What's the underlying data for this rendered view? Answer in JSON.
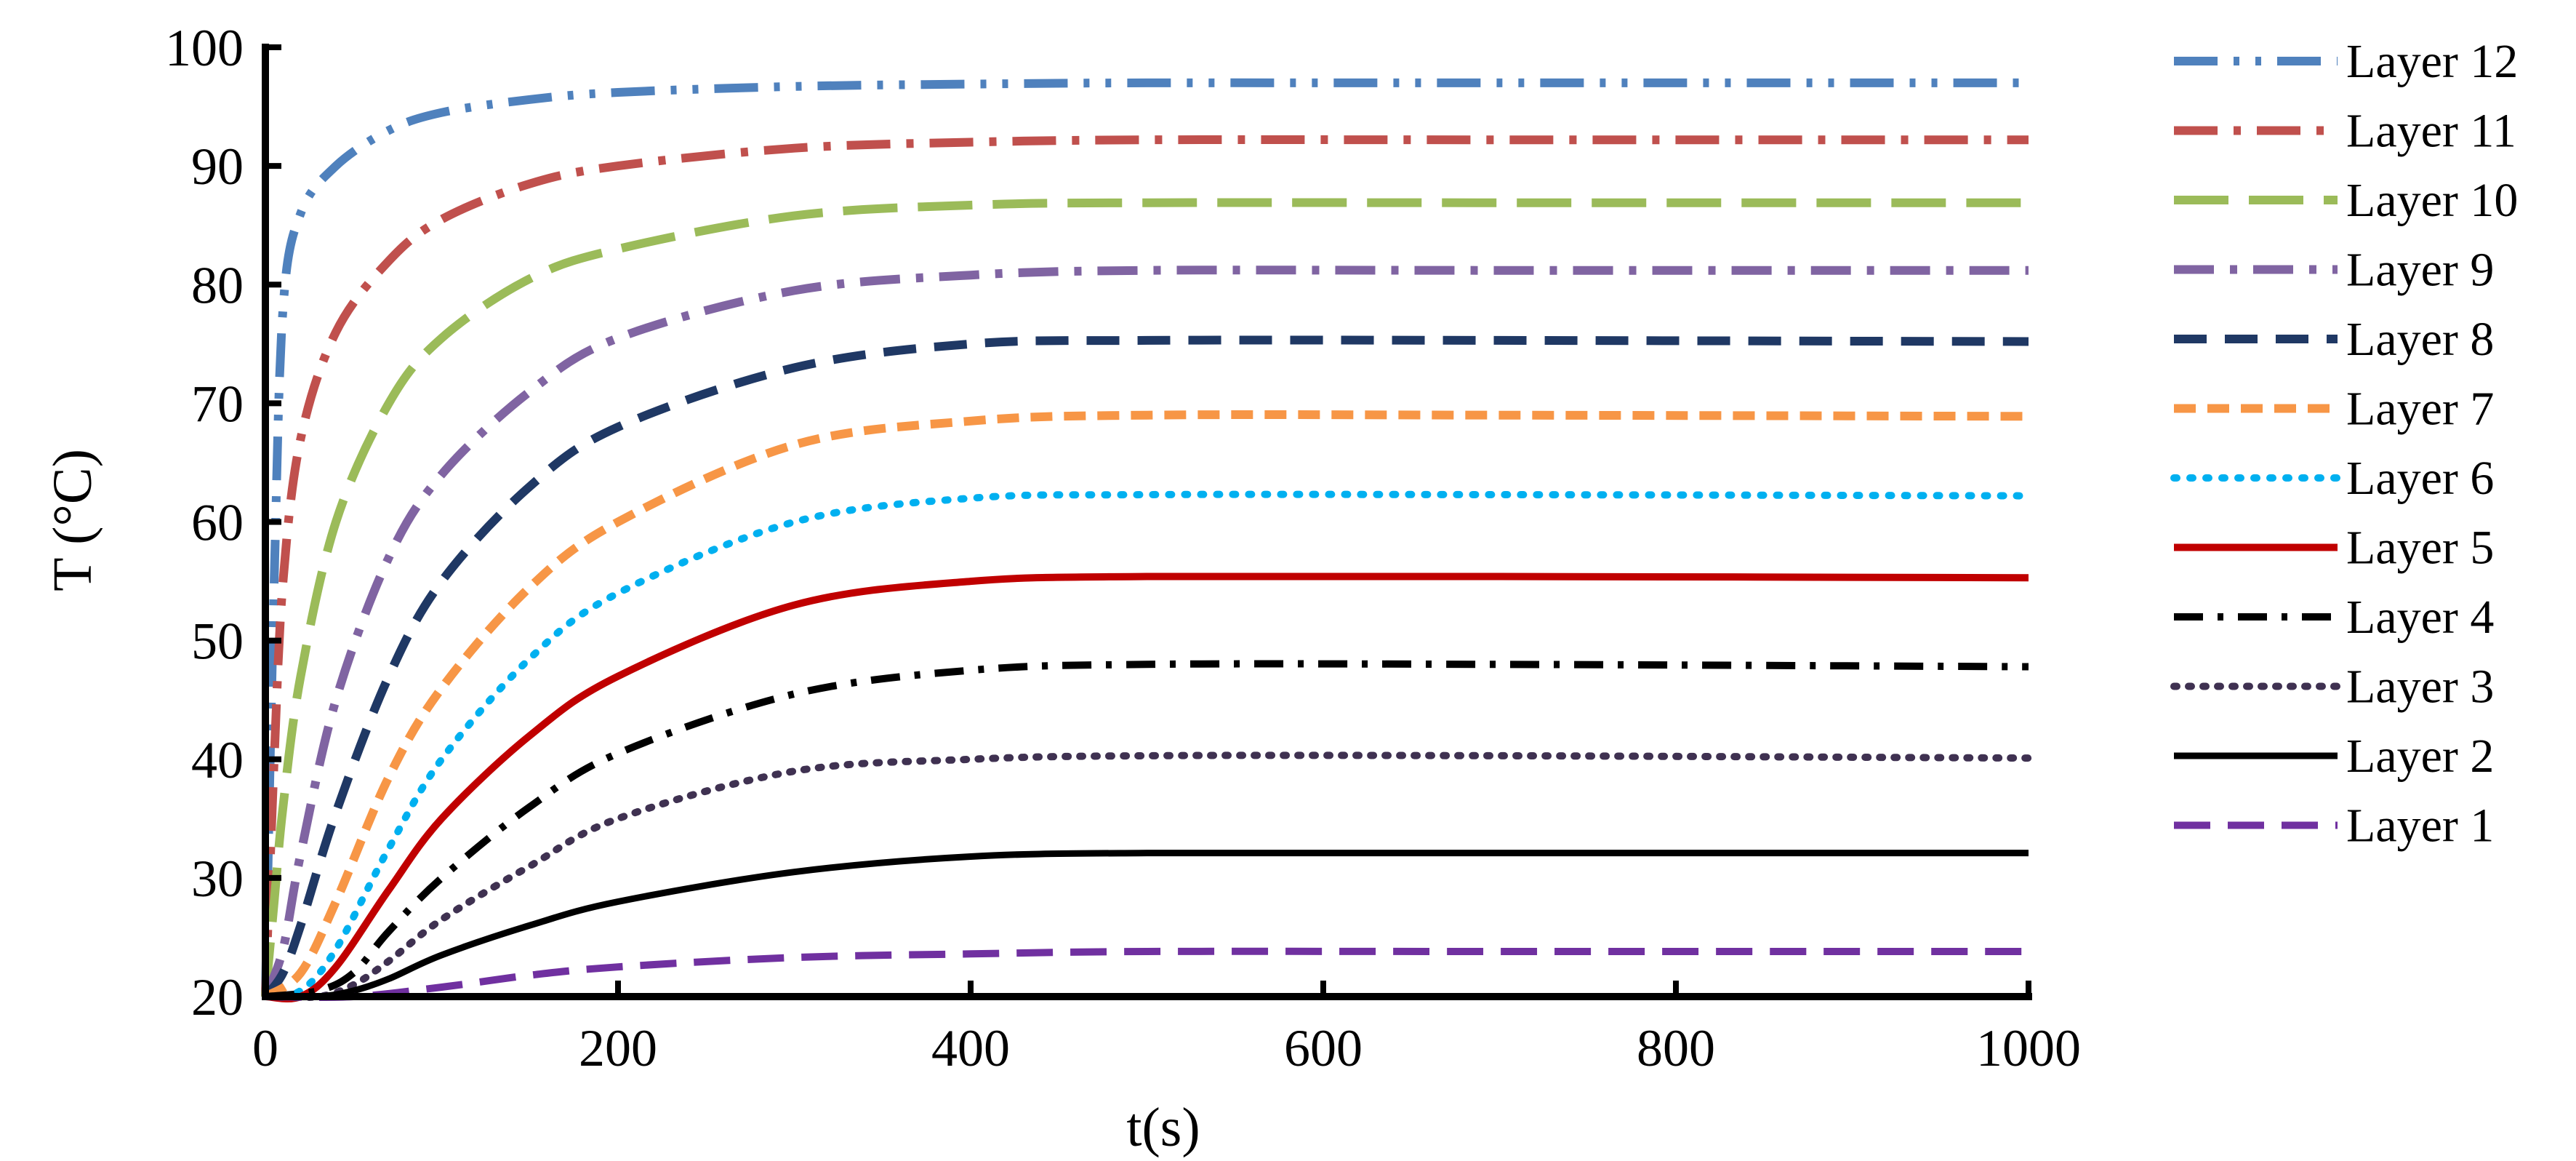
{
  "chart_data": {
    "type": "line",
    "title": "",
    "xlabel": "t(s)",
    "ylabel": "T (°C)",
    "xlim": [
      0,
      1000
    ],
    "ylim": [
      20,
      100
    ],
    "xticks": [
      0,
      200,
      400,
      600,
      800,
      1000
    ],
    "yticks": [
      20,
      30,
      40,
      50,
      60,
      70,
      80,
      90,
      100
    ],
    "grid": false,
    "legend_position": "right",
    "series": [
      {
        "name": "Layer 12",
        "color": "#4F81BD",
        "dash": "60,22,8,22,8,22",
        "width": 12,
        "points": [
          [
            0,
            20
          ],
          [
            5,
            55
          ],
          [
            10,
            78
          ],
          [
            20,
            86
          ],
          [
            40,
            90
          ],
          [
            70,
            93
          ],
          [
            100,
            94.5
          ],
          [
            150,
            95.6
          ],
          [
            200,
            96.2
          ],
          [
            300,
            96.7
          ],
          [
            400,
            96.9
          ],
          [
            500,
            97
          ],
          [
            700,
            97
          ],
          [
            1000,
            97
          ]
        ]
      },
      {
        "name": "Layer 11",
        "color": "#C0504D",
        "dash": "60,22,10,22",
        "width": 12,
        "points": [
          [
            0,
            20
          ],
          [
            5,
            40
          ],
          [
            10,
            55
          ],
          [
            20,
            67
          ],
          [
            40,
            76
          ],
          [
            70,
            82
          ],
          [
            100,
            85.5
          ],
          [
            150,
            88.5
          ],
          [
            200,
            90
          ],
          [
            300,
            91.5
          ],
          [
            400,
            92
          ],
          [
            500,
            92.2
          ],
          [
            700,
            92.2
          ],
          [
            1000,
            92.2
          ]
        ]
      },
      {
        "name": "Layer 10",
        "color": "#9BBB59",
        "dash": "75,28",
        "width": 12,
        "points": [
          [
            0,
            20
          ],
          [
            5,
            28
          ],
          [
            10,
            36
          ],
          [
            20,
            47
          ],
          [
            40,
            60
          ],
          [
            70,
            70
          ],
          [
            100,
            75.5
          ],
          [
            150,
            80.5
          ],
          [
            200,
            83
          ],
          [
            300,
            85.8
          ],
          [
            400,
            86.7
          ],
          [
            500,
            86.9
          ],
          [
            700,
            86.9
          ],
          [
            1000,
            86.9
          ]
        ]
      },
      {
        "name": "Layer 9",
        "color": "#8064A2",
        "dash": "55,22,10,22",
        "width": 12,
        "points": [
          [
            0,
            20
          ],
          [
            10,
            24
          ],
          [
            20,
            32
          ],
          [
            40,
            45
          ],
          [
            70,
            57
          ],
          [
            100,
            64
          ],
          [
            150,
            71
          ],
          [
            200,
            75.5
          ],
          [
            300,
            79.5
          ],
          [
            400,
            80.8
          ],
          [
            500,
            81.2
          ],
          [
            700,
            81.2
          ],
          [
            1000,
            81.2
          ]
        ]
      },
      {
        "name": "Layer 8",
        "color": "#1F3864",
        "dash": "45,25",
        "width": 12,
        "points": [
          [
            0,
            20
          ],
          [
            10,
            22
          ],
          [
            20,
            26
          ],
          [
            40,
            35.5
          ],
          [
            70,
            47
          ],
          [
            100,
            55
          ],
          [
            150,
            63
          ],
          [
            200,
            68
          ],
          [
            300,
            73
          ],
          [
            400,
            75
          ],
          [
            500,
            75.3
          ],
          [
            700,
            75.3
          ],
          [
            1000,
            75.2
          ]
        ]
      },
      {
        "name": "Layer 7",
        "color": "#F79646",
        "dash": "30,16",
        "width": 12,
        "points": [
          [
            0,
            20
          ],
          [
            20,
            22
          ],
          [
            40,
            28
          ],
          [
            70,
            38.5
          ],
          [
            100,
            46
          ],
          [
            150,
            54.5
          ],
          [
            200,
            60
          ],
          [
            300,
            66.5
          ],
          [
            400,
            68.5
          ],
          [
            500,
            69
          ],
          [
            700,
            69
          ],
          [
            1000,
            68.9
          ]
        ]
      },
      {
        "name": "Layer 6",
        "color": "#00B0F0",
        "dash": "4,18",
        "width": 10,
        "points": [
          [
            0,
            20
          ],
          [
            20,
            20.5
          ],
          [
            40,
            24
          ],
          [
            70,
            32.5
          ],
          [
            100,
            40
          ],
          [
            150,
            48.5
          ],
          [
            200,
            54
          ],
          [
            300,
            60
          ],
          [
            400,
            62
          ],
          [
            500,
            62.3
          ],
          [
            700,
            62.3
          ],
          [
            1000,
            62.2
          ]
        ]
      },
      {
        "name": "Layer 5",
        "color": "#C00000",
        "dash": "",
        "width": 10,
        "points": [
          [
            0,
            20
          ],
          [
            20,
            20
          ],
          [
            40,
            22.5
          ],
          [
            70,
            29
          ],
          [
            100,
            35
          ],
          [
            150,
            42
          ],
          [
            200,
            47
          ],
          [
            300,
            53
          ],
          [
            400,
            55
          ],
          [
            500,
            55.4
          ],
          [
            700,
            55.4
          ],
          [
            1000,
            55.3
          ]
        ]
      },
      {
        "name": "Layer 4",
        "color": "#000000",
        "dash": "40,20,8,20",
        "width": 10,
        "points": [
          [
            0,
            20
          ],
          [
            30,
            20.5
          ],
          [
            50,
            22
          ],
          [
            70,
            25.5
          ],
          [
            100,
            30
          ],
          [
            150,
            36
          ],
          [
            200,
            40.5
          ],
          [
            300,
            45.5
          ],
          [
            400,
            47.5
          ],
          [
            500,
            48
          ],
          [
            700,
            48
          ],
          [
            1000,
            47.8
          ]
        ]
      },
      {
        "name": "Layer 3",
        "color": "#3F3151",
        "dash": "4,16",
        "width": 10,
        "points": [
          [
            0,
            20
          ],
          [
            30,
            20
          ],
          [
            50,
            21
          ],
          [
            70,
            23
          ],
          [
            100,
            26.5
          ],
          [
            150,
            31
          ],
          [
            200,
            35
          ],
          [
            300,
            39
          ],
          [
            400,
            40
          ],
          [
            500,
            40.3
          ],
          [
            700,
            40.3
          ],
          [
            1000,
            40.1
          ]
        ]
      },
      {
        "name": "Layer 2",
        "color": "#000000",
        "dash": "",
        "width": 9,
        "points": [
          [
            0,
            20
          ],
          [
            30,
            20
          ],
          [
            50,
            20.5
          ],
          [
            70,
            21.5
          ],
          [
            100,
            23.5
          ],
          [
            150,
            26
          ],
          [
            200,
            28
          ],
          [
            300,
            30.5
          ],
          [
            400,
            31.8
          ],
          [
            500,
            32.1
          ],
          [
            700,
            32.1
          ],
          [
            1000,
            32.1
          ]
        ]
      },
      {
        "name": "Layer 1",
        "color": "#7030A0",
        "dash": "50,24",
        "width": 10,
        "points": [
          [
            0,
            20
          ],
          [
            50,
            20
          ],
          [
            100,
            20.8
          ],
          [
            150,
            21.8
          ],
          [
            200,
            22.5
          ],
          [
            300,
            23.3
          ],
          [
            400,
            23.6
          ],
          [
            500,
            23.8
          ],
          [
            700,
            23.8
          ],
          [
            1000,
            23.8
          ]
        ]
      }
    ]
  }
}
